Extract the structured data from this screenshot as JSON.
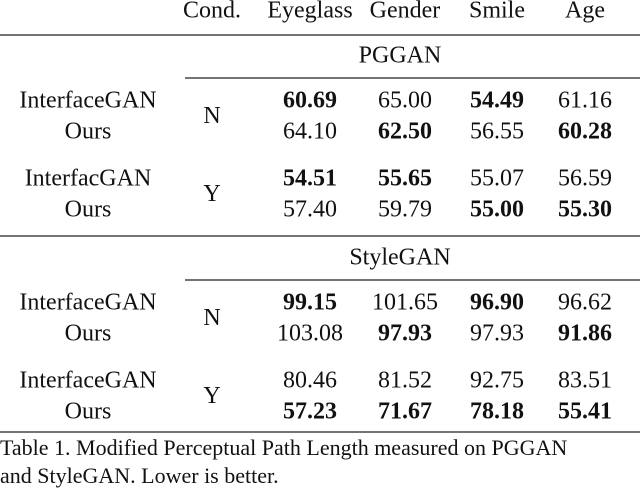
{
  "header": {
    "columns": [
      "Cond.",
      "Eyeglass",
      "Gender",
      "Smile",
      "Age"
    ]
  },
  "sections": [
    {
      "title": "PGGAN",
      "groups": [
        {
          "cond": "N",
          "rows": [
            {
              "method": "InterfaceGAN",
              "values": [
                "60.69",
                "65.00",
                "54.49",
                "61.16"
              ],
              "bold": [
                true,
                false,
                true,
                false
              ]
            },
            {
              "method": "Ours",
              "values": [
                "64.10",
                "62.50",
                "56.55",
                "60.28"
              ],
              "bold": [
                false,
                true,
                false,
                true
              ]
            }
          ]
        },
        {
          "cond": "Y",
          "rows": [
            {
              "method": "InterfacGAN",
              "values": [
                "54.51",
                "55.65",
                "55.07",
                "56.59"
              ],
              "bold": [
                true,
                true,
                false,
                false
              ]
            },
            {
              "method": "Ours",
              "values": [
                "57.40",
                "59.79",
                "55.00",
                "55.30"
              ],
              "bold": [
                false,
                false,
                true,
                true
              ]
            }
          ]
        }
      ]
    },
    {
      "title": "StyleGAN",
      "groups": [
        {
          "cond": "N",
          "rows": [
            {
              "method": "InterfaceGAN",
              "values": [
                "99.15",
                "101.65",
                "96.90",
                "96.62"
              ],
              "bold": [
                true,
                false,
                true,
                false
              ]
            },
            {
              "method": "Ours",
              "values": [
                "103.08",
                "97.93",
                "97.93",
                "91.86"
              ],
              "bold": [
                false,
                true,
                false,
                true
              ]
            }
          ]
        },
        {
          "cond": "Y",
          "rows": [
            {
              "method": "InterfaceGAN",
              "values": [
                "80.46",
                "81.52",
                "92.75",
                "83.51"
              ],
              "bold": [
                false,
                false,
                false,
                false
              ]
            },
            {
              "method": "Ours",
              "values": [
                "57.23",
                "71.67",
                "78.18",
                "55.41"
              ],
              "bold": [
                true,
                true,
                true,
                true
              ]
            }
          ]
        }
      ]
    }
  ],
  "caption": [
    "Table 1. Modified Perceptual Path Length measured on PGGAN",
    "and StyleGAN. Lower is better."
  ]
}
